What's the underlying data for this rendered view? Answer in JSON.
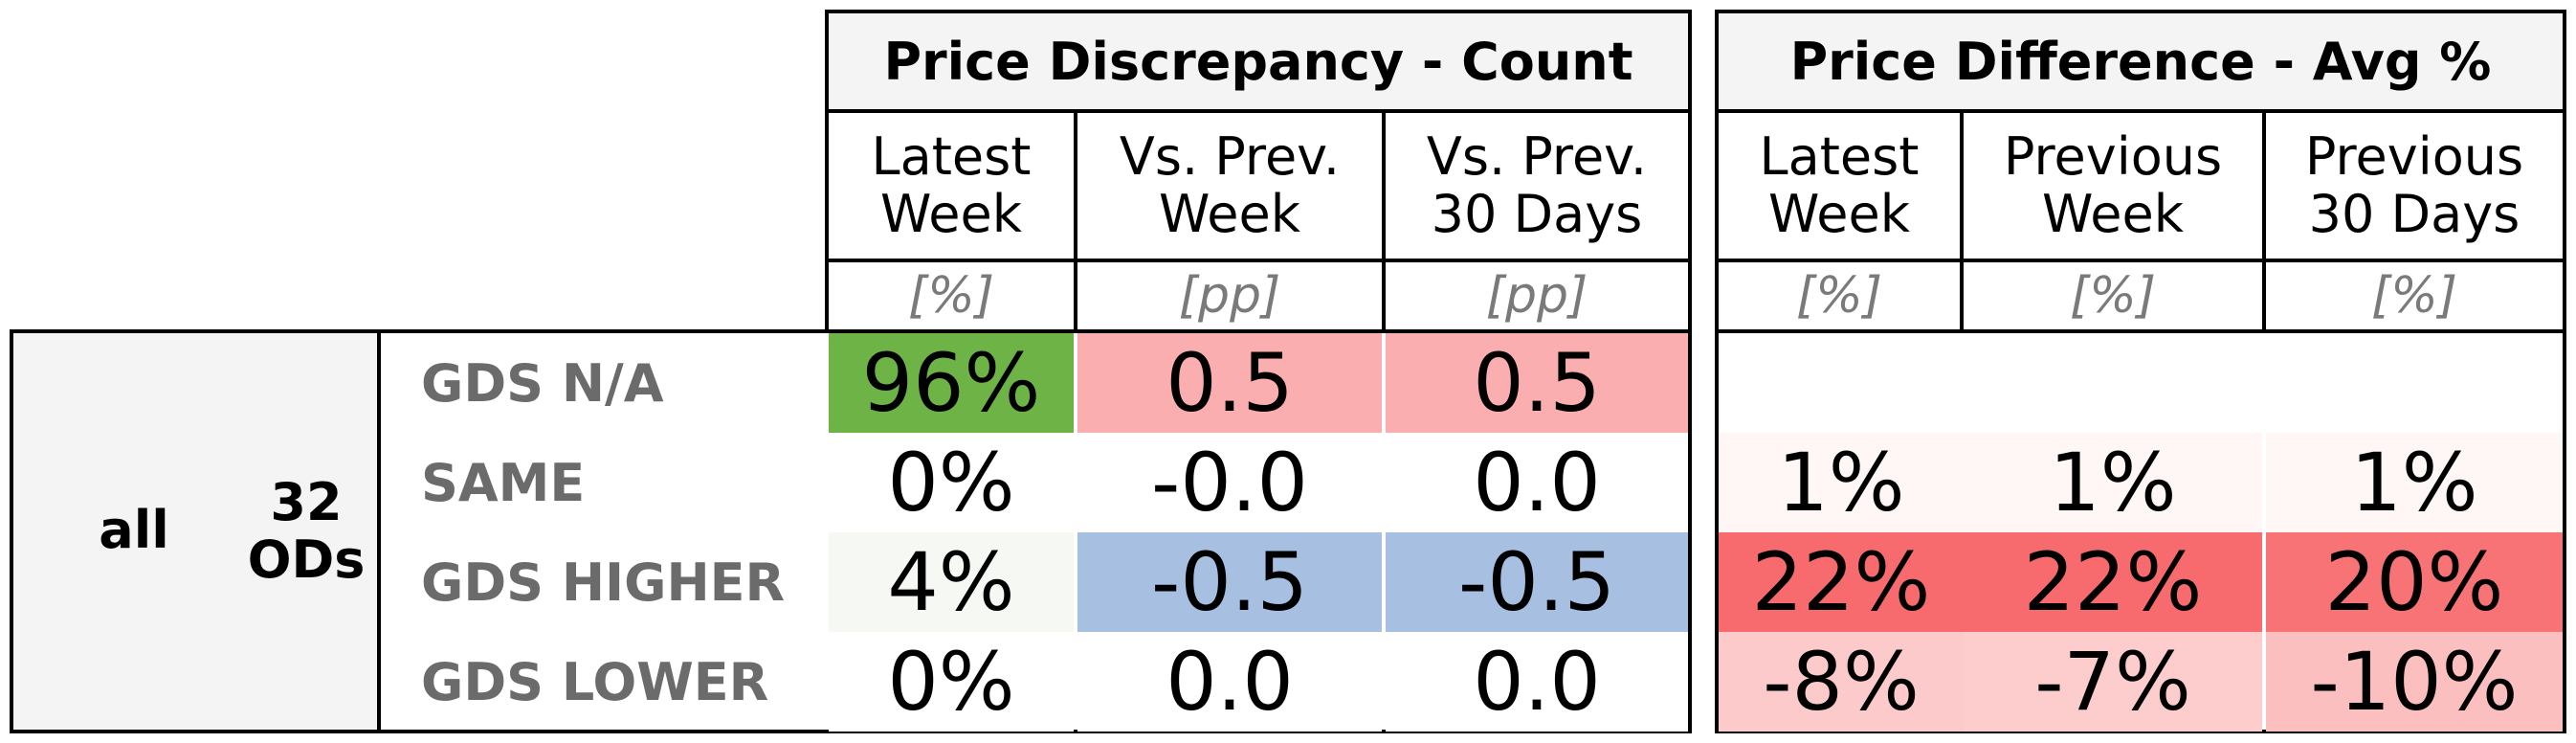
{
  "count_table": {
    "title": "Price Discrepancy - Count",
    "columns": [
      {
        "label": "Latest\nWeek",
        "unit": "[%]"
      },
      {
        "label": "Vs. Prev.\nWeek",
        "unit": "[pp]"
      },
      {
        "label": "Vs. Prev.\n30 Days",
        "unit": "[pp]"
      }
    ]
  },
  "avg_table": {
    "title": "Price Difference - Avg %",
    "columns": [
      {
        "label": "Latest\nWeek",
        "unit": "[%]"
      },
      {
        "label": "Previous\nWeek",
        "unit": "[%]"
      },
      {
        "label": "Previous\n30 Days",
        "unit": "[%]"
      }
    ]
  },
  "group": {
    "name": "all",
    "count_label": "32\nODs"
  },
  "rows": [
    {
      "label": "GDS N/A",
      "count": [
        {
          "v": "96%",
          "bg": "#6db346"
        },
        {
          "v": "0.5",
          "bg": "#fbaeb0"
        },
        {
          "v": "0.5",
          "bg": "#fbaeb0"
        }
      ],
      "avg": [
        {
          "v": "",
          "bg": "#ffffff"
        },
        {
          "v": "",
          "bg": "#ffffff"
        },
        {
          "v": "",
          "bg": "#ffffff"
        }
      ]
    },
    {
      "label": "SAME",
      "count": [
        {
          "v": "0%",
          "bg": "#ffffff"
        },
        {
          "v": "-0.0",
          "bg": "#ffffff"
        },
        {
          "v": "0.0",
          "bg": "#ffffff"
        }
      ],
      "avg": [
        {
          "v": "1%",
          "bg": "#fff6f6"
        },
        {
          "v": "1%",
          "bg": "#fff6f6"
        },
        {
          "v": "1%",
          "bg": "#fff6f6"
        }
      ]
    },
    {
      "label": "GDS HIGHER",
      "count": [
        {
          "v": "4%",
          "bg": "#f6f9f3"
        },
        {
          "v": "-0.5",
          "bg": "#a7bfe0"
        },
        {
          "v": "-0.5",
          "bg": "#a7bfe0"
        }
      ],
      "avg": [
        {
          "v": "22%",
          "bg": "#f76b6e"
        },
        {
          "v": "22%",
          "bg": "#f76b6e"
        },
        {
          "v": "20%",
          "bg": "#f87376"
        }
      ]
    },
    {
      "label": "GDS LOWER",
      "count": [
        {
          "v": "0%",
          "bg": "#ffffff"
        },
        {
          "v": "0.0",
          "bg": "#ffffff"
        },
        {
          "v": "0.0",
          "bg": "#ffffff"
        }
      ],
      "avg": [
        {
          "v": "-8%",
          "bg": "#fdcacb"
        },
        {
          "v": "-7%",
          "bg": "#fdcccd"
        },
        {
          "v": "-10%",
          "bg": "#fcbfc0"
        }
      ]
    }
  ]
}
